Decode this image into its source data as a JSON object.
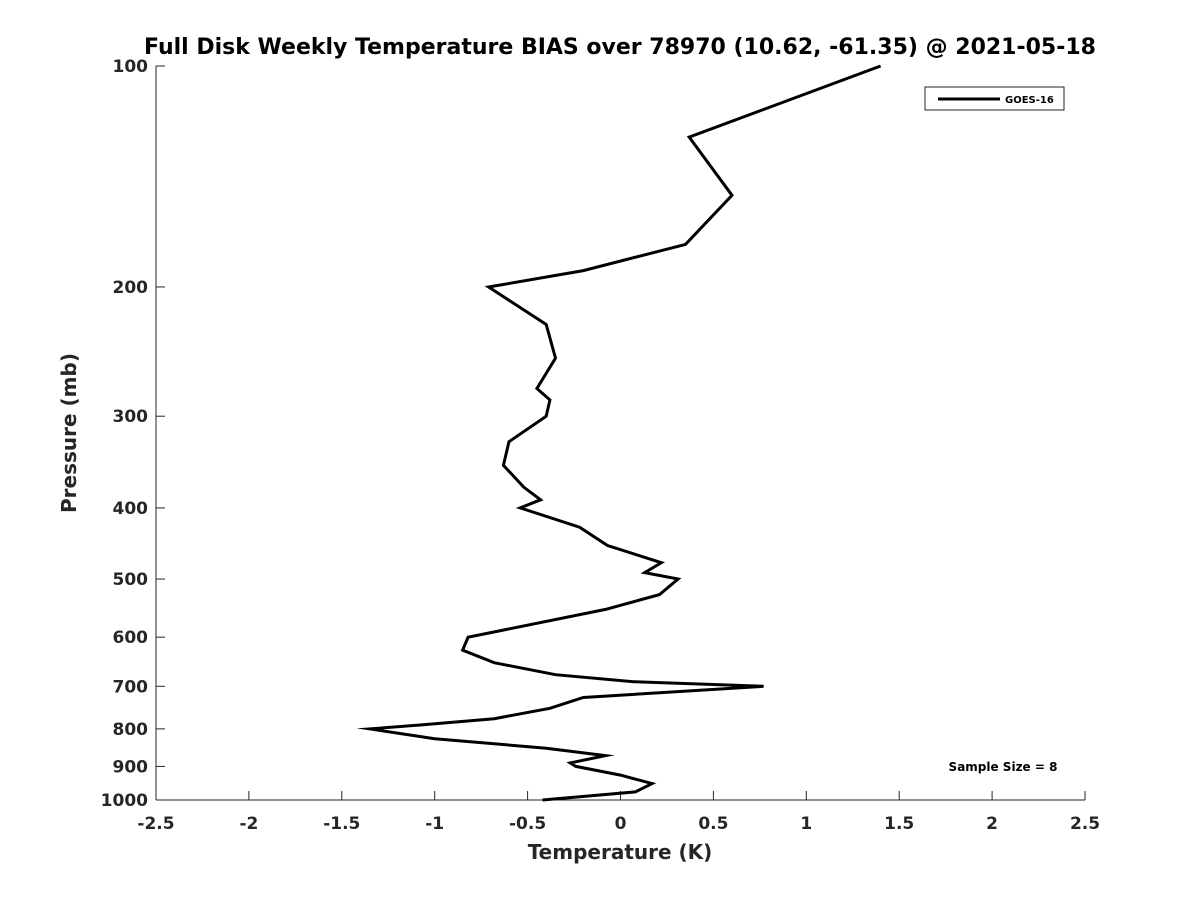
{
  "chart_data": {
    "type": "line",
    "title": "Full Disk Weekly Temperature BIAS over 78970 (10.62, -61.35) @ 2021-05-18",
    "xlabel": "Temperature (K)",
    "ylabel": "Pressure (mb)",
    "xlim": [
      -2.5,
      2.5
    ],
    "ylim": [
      100,
      1000
    ],
    "y_scale": "log",
    "y_reversed": true,
    "x_ticks": [
      -2.5,
      -2,
      -1.5,
      -1,
      -0.5,
      0,
      0.5,
      1,
      1.5,
      2,
      2.5
    ],
    "x_tick_labels": [
      "-2.5",
      "-2",
      "-1.5",
      "-1",
      "-0.5",
      "0",
      "0.5",
      "1",
      "1.5",
      "2",
      "2.5"
    ],
    "y_ticks": [
      100,
      200,
      300,
      400,
      500,
      600,
      700,
      800,
      900,
      1000
    ],
    "y_tick_labels": [
      "100",
      "200",
      "300",
      "400",
      "500",
      "600",
      "700",
      "800",
      "900",
      "1000"
    ],
    "grid": false,
    "legend_position": "top-right",
    "annotation": "Sample Size = 8",
    "series": [
      {
        "name": "GOES-16",
        "color": "#000000",
        "points": [
          {
            "x": 1.4,
            "p": 100
          },
          {
            "x": 0.37,
            "p": 125
          },
          {
            "x": 0.6,
            "p": 150
          },
          {
            "x": 0.35,
            "p": 175
          },
          {
            "x": -0.2,
            "p": 190
          },
          {
            "x": -0.71,
            "p": 200
          },
          {
            "x": -0.4,
            "p": 225
          },
          {
            "x": -0.35,
            "p": 250
          },
          {
            "x": -0.45,
            "p": 275
          },
          {
            "x": -0.38,
            "p": 285
          },
          {
            "x": -0.4,
            "p": 300
          },
          {
            "x": -0.6,
            "p": 325
          },
          {
            "x": -0.63,
            "p": 350
          },
          {
            "x": -0.52,
            "p": 375
          },
          {
            "x": -0.43,
            "p": 390
          },
          {
            "x": -0.54,
            "p": 400
          },
          {
            "x": -0.22,
            "p": 425
          },
          {
            "x": -0.07,
            "p": 450
          },
          {
            "x": 0.22,
            "p": 475
          },
          {
            "x": 0.13,
            "p": 490
          },
          {
            "x": 0.31,
            "p": 500
          },
          {
            "x": 0.21,
            "p": 525
          },
          {
            "x": -0.08,
            "p": 550
          },
          {
            "x": -0.82,
            "p": 600
          },
          {
            "x": -0.85,
            "p": 625
          },
          {
            "x": -0.68,
            "p": 650
          },
          {
            "x": -0.35,
            "p": 675
          },
          {
            "x": 0.07,
            "p": 690
          },
          {
            "x": 0.77,
            "p": 700
          },
          {
            "x": -0.2,
            "p": 725
          },
          {
            "x": -0.38,
            "p": 750
          },
          {
            "x": -0.68,
            "p": 775
          },
          {
            "x": -1.07,
            "p": 790
          },
          {
            "x": -1.35,
            "p": 800
          },
          {
            "x": -1.0,
            "p": 825
          },
          {
            "x": -0.4,
            "p": 850
          },
          {
            "x": -0.08,
            "p": 870
          },
          {
            "x": -0.27,
            "p": 890
          },
          {
            "x": -0.24,
            "p": 900
          },
          {
            "x": 0.0,
            "p": 925
          },
          {
            "x": 0.17,
            "p": 950
          },
          {
            "x": 0.08,
            "p": 975
          },
          {
            "x": -0.42,
            "p": 1000
          }
        ]
      }
    ]
  }
}
